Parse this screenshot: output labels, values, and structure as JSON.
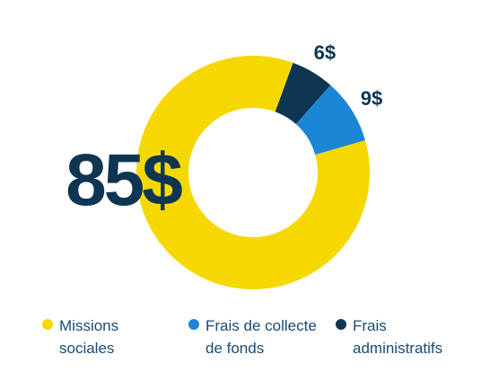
{
  "chart_data": {
    "type": "pie",
    "variant": "donut",
    "total": 100,
    "center_label": "85$",
    "slices": [
      {
        "label": "Missions sociales",
        "value": 85,
        "display": "85$",
        "color": "#f5d800"
      },
      {
        "label": "Frais de collecte de fonds",
        "value": 9,
        "display": "9$",
        "color": "#1c86d6"
      },
      {
        "label": "Frais administratifs",
        "value": 6,
        "display": "6$",
        "color": "#0e3552"
      }
    ]
  },
  "legend": [
    {
      "text": "Missions\nsociales",
      "color": "#f5d800"
    },
    {
      "text": "Frais de collecte\nde fonds",
      "color": "#1c86d6"
    },
    {
      "text": "Frais\nadministratifs",
      "color": "#0e3552"
    }
  ]
}
